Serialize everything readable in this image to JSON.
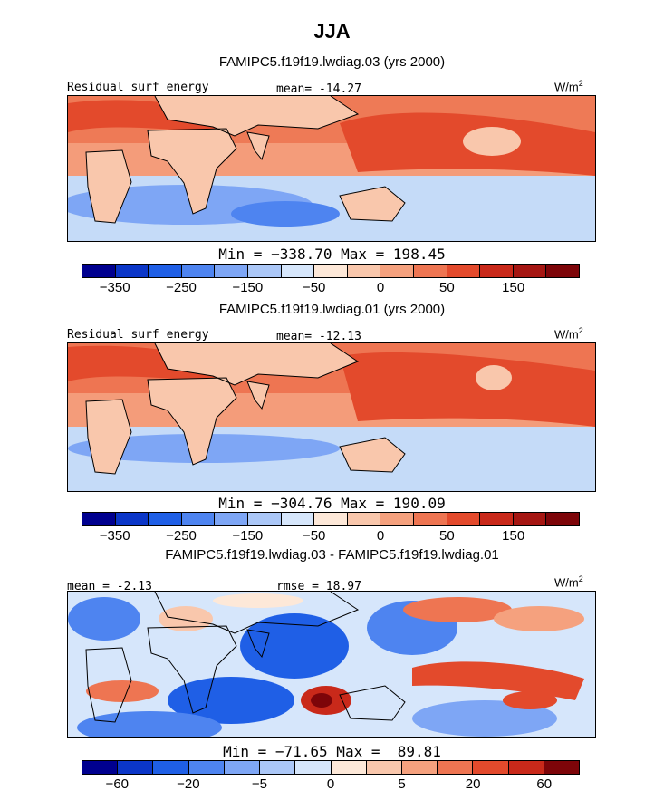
{
  "figure": {
    "season": "JJA"
  },
  "colors": {
    "residual_scale": [
      "#00008f",
      "#0b36c8",
      "#1f5fe6",
      "#4e84f0",
      "#7ea6f5",
      "#abc7f7",
      "#d6e6fb",
      "#fde8d8",
      "#f9c7ac",
      "#f5a17e",
      "#ee7552",
      "#e34a2c",
      "#c9291a",
      "#a51612",
      "#7d0509"
    ],
    "diff_scale": [
      "#00008f",
      "#0b36c8",
      "#1f5fe6",
      "#4e84f0",
      "#7ea6f5",
      "#abc7f7",
      "#d6e6fb",
      "#fde8d8",
      "#f9c7ac",
      "#f5a17e",
      "#ee7552",
      "#e34a2c",
      "#c9291a",
      "#7d0509"
    ],
    "coast": "#000000"
  },
  "chart_data": [
    {
      "type": "heatmap",
      "title": "FAMIPC5.f19f19.lwdiag.03 (yrs 2000)",
      "field_label": "Residual surf energy",
      "stat_text": "mean= -14.27",
      "units": "W/m",
      "units_exp": "2",
      "minmax_text": "Min = −338.70 Max = 198.45",
      "colorbar_ticks": [
        "−350",
        "−250",
        "−150",
        "−50",
        "0",
        "50",
        "150"
      ],
      "colorbar_tick_boundaries": [
        1,
        3,
        5,
        7,
        9,
        11,
        13
      ],
      "mean": -14.27,
      "min": -338.7,
      "max": 198.45
    },
    {
      "type": "heatmap",
      "title": "FAMIPC5.f19f19.lwdiag.01 (yrs 2000)",
      "field_label": "Residual surf energy",
      "stat_text": "mean= -12.13",
      "units": "W/m",
      "units_exp": "2",
      "minmax_text": "Min = −304.76 Max = 190.09",
      "colorbar_ticks": [
        "−350",
        "−250",
        "−150",
        "−50",
        "0",
        "50",
        "150"
      ],
      "colorbar_tick_boundaries": [
        1,
        3,
        5,
        7,
        9,
        11,
        13
      ],
      "mean": -12.13,
      "min": -304.76,
      "max": 190.09
    },
    {
      "type": "heatmap",
      "title": "FAMIPC5.f19f19.lwdiag.03 - FAMIPC5.f19f19.lwdiag.01",
      "stat_left_text": "mean =  -2.13",
      "stat_text": "rmse =  18.97",
      "units": "W/m",
      "units_exp": "2",
      "minmax_text": "Min = −71.65 Max =  89.81",
      "colorbar_ticks": [
        "−60",
        "−20",
        "−5",
        "0",
        "5",
        "20",
        "60"
      ],
      "colorbar_tick_boundaries": [
        1,
        3,
        5,
        7,
        9,
        11,
        13
      ],
      "mean": -2.13,
      "rmse": 18.97,
      "min": -71.65,
      "max": 89.81
    }
  ]
}
